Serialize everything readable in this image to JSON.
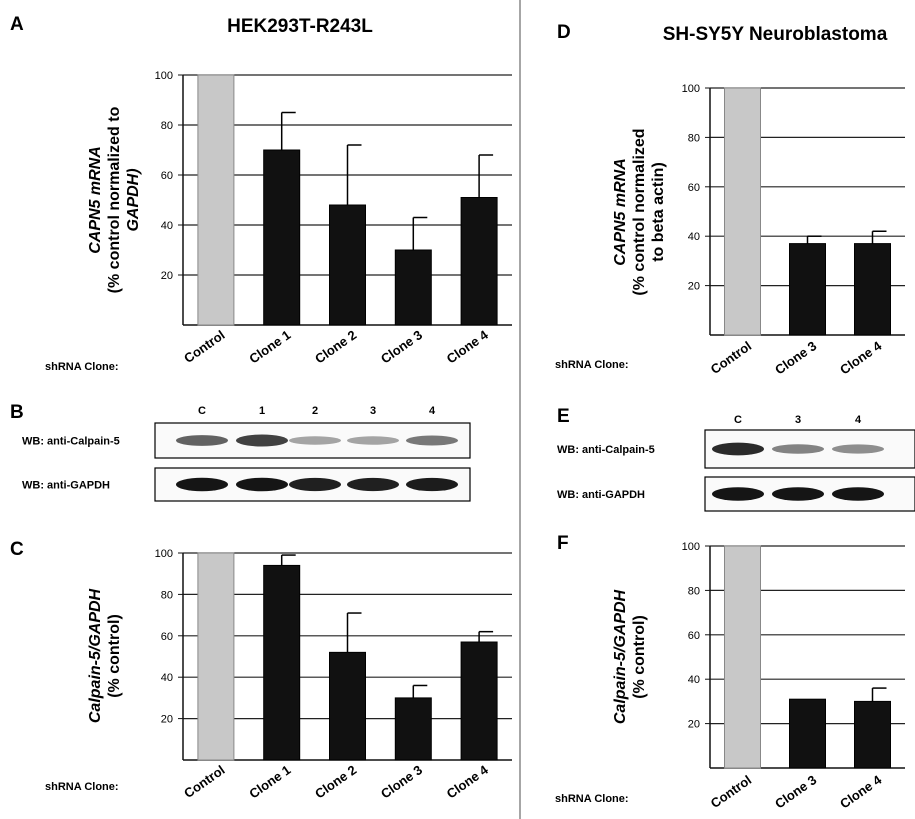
{
  "figure": {
    "divider_color": "#888888",
    "bar_color": "#111111",
    "control_bar_color": "#c8c8c8",
    "axis_color": "#111111"
  },
  "chart_data": [
    {
      "id": "A",
      "type": "bar",
      "panel_letter": "A",
      "title": "HEK293T-R243L",
      "ylabel_lines": [
        "CAPN5 mRNA",
        "(% control normalized to",
        "GAPDH)"
      ],
      "categories": [
        "Control",
        "Clone 1",
        "Clone 2",
        "Clone 3",
        "Clone 4"
      ],
      "values": [
        100,
        70,
        48,
        30,
        51
      ],
      "errors": [
        0,
        15,
        24,
        13,
        17
      ],
      "yticks": [
        20,
        40,
        60,
        80,
        100
      ],
      "ylim": [
        0,
        100
      ],
      "grid": true,
      "xaxis_prefix": "shRNA Clone:"
    },
    {
      "id": "C",
      "type": "bar",
      "panel_letter": "C",
      "title": "",
      "ylabel_lines": [
        "Calpain-5/GAPDH",
        "(% control)"
      ],
      "categories": [
        "Control",
        "Clone 1",
        "Clone 2",
        "Clone 3",
        "Clone 4"
      ],
      "values": [
        100,
        94,
        52,
        30,
        57
      ],
      "errors": [
        0,
        5,
        19,
        6,
        5
      ],
      "yticks": [
        20,
        40,
        60,
        80,
        100
      ],
      "ylim": [
        0,
        100
      ],
      "grid": true,
      "xaxis_prefix": "shRNA Clone:"
    },
    {
      "id": "D",
      "type": "bar",
      "panel_letter": "D",
      "title": "SH-SY5Y Neuroblastoma",
      "ylabel_lines": [
        "CAPN5 mRNA",
        "(% control normalized",
        "to beta actin)"
      ],
      "categories": [
        "Control",
        "Clone 3",
        "Clone 4"
      ],
      "values": [
        100,
        37,
        37
      ],
      "errors": [
        0,
        3,
        5
      ],
      "yticks": [
        20,
        40,
        60,
        80,
        100
      ],
      "ylim": [
        0,
        100
      ],
      "grid": true,
      "xaxis_prefix": "shRNA Clone:"
    },
    {
      "id": "F",
      "type": "bar",
      "panel_letter": "F",
      "title": "",
      "ylabel_lines": [
        "Calpain-5/GAPDH",
        "(% control)"
      ],
      "categories": [
        "Control",
        "Clone 3",
        "Clone 4"
      ],
      "values": [
        100,
        31,
        30
      ],
      "errors": [
        0,
        0,
        6
      ],
      "yticks": [
        20,
        40,
        60,
        80,
        100
      ],
      "ylim": [
        0,
        100
      ],
      "grid": true,
      "xaxis_prefix": "shRNA Clone:"
    }
  ],
  "blots": [
    {
      "id": "B",
      "panel_letter": "B",
      "lane_labels": [
        "C",
        "1",
        "2",
        "3",
        "4"
      ],
      "rows": [
        {
          "label": "WB: anti-Calpain-5",
          "intensities": [
            0.6,
            0.75,
            0.3,
            0.3,
            0.5
          ]
        },
        {
          "label": "WB: anti-GAPDH",
          "intensities": [
            0.95,
            0.95,
            0.9,
            0.9,
            0.92
          ]
        }
      ]
    },
    {
      "id": "E",
      "panel_letter": "E",
      "lane_labels": [
        "C",
        "3",
        "4"
      ],
      "rows": [
        {
          "label": "WB: anti-Calpain-5",
          "intensities": [
            0.85,
            0.45,
            0.4
          ]
        },
        {
          "label": "WB: anti-GAPDH",
          "intensities": [
            0.95,
            0.95,
            0.95
          ]
        }
      ]
    }
  ]
}
